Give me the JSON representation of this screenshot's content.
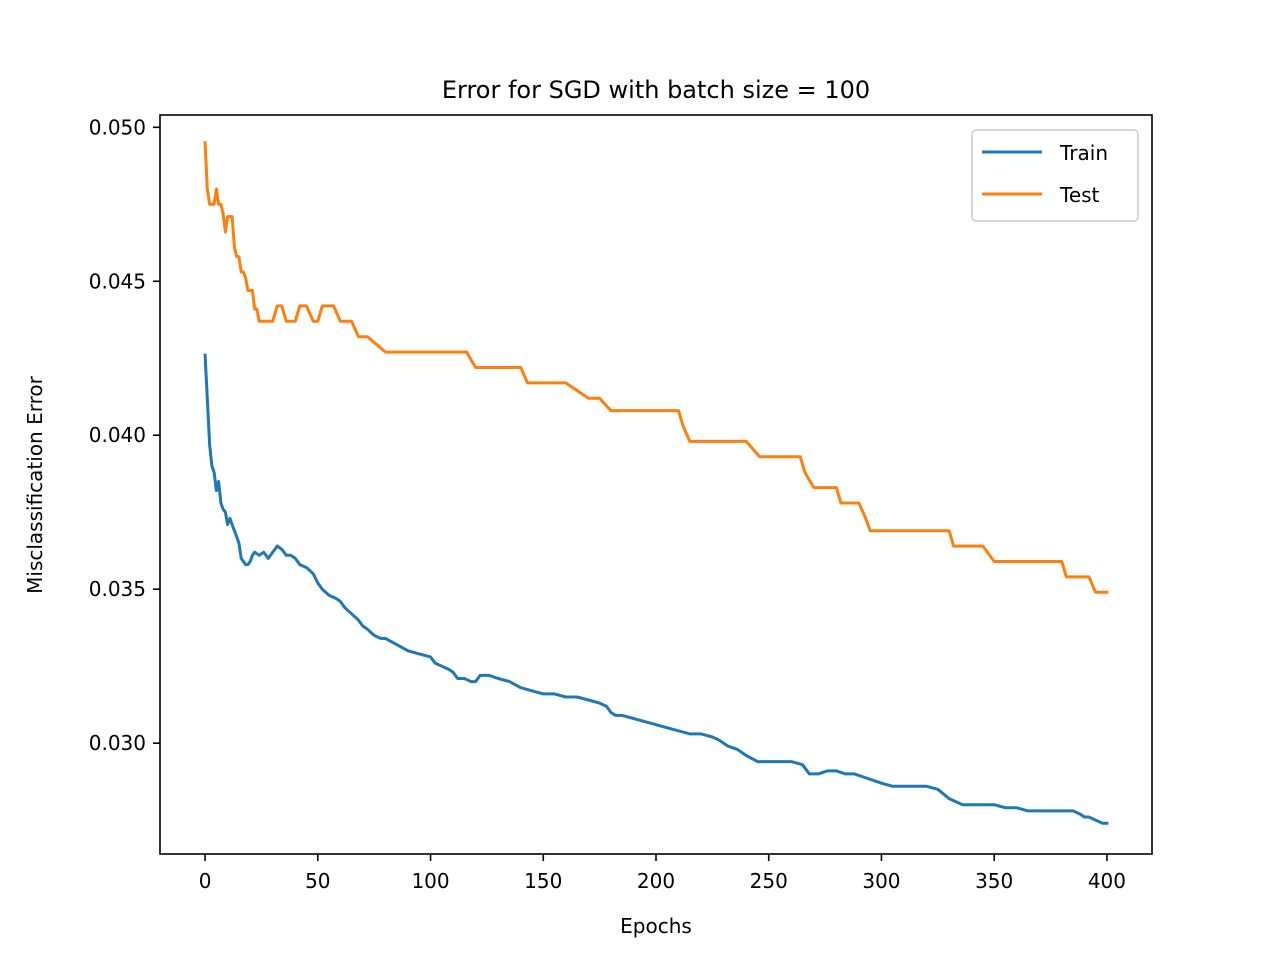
{
  "chart_data": {
    "type": "line",
    "title": "Error for SGD with batch size = 100",
    "xlabel": "Epochs",
    "ylabel": "Misclassification Error",
    "xlim": [
      -20,
      420
    ],
    "ylim": [
      0.0264,
      0.0504
    ],
    "xticks": [
      0,
      50,
      100,
      150,
      200,
      250,
      300,
      350,
      400
    ],
    "xtick_labels": [
      "0",
      "50",
      "100",
      "150",
      "200",
      "250",
      "300",
      "350",
      "400"
    ],
    "yticks": [
      0.03,
      0.035,
      0.04,
      0.045,
      0.05
    ],
    "ytick_labels": [
      "0.030",
      "0.035",
      "0.040",
      "0.045",
      "0.050"
    ],
    "grid": false,
    "legend": "top-right",
    "series": [
      {
        "name": "Train",
        "color": "#1f77b4",
        "x": [
          0,
          1,
          2,
          3,
          4,
          5,
          6,
          7,
          8,
          9,
          10,
          11,
          12,
          13,
          14,
          15,
          16,
          17,
          18,
          19,
          20,
          21,
          22,
          24,
          26,
          28,
          30,
          32,
          34,
          36,
          38,
          40,
          42,
          45,
          48,
          50,
          52,
          55,
          58,
          60,
          62,
          65,
          68,
          70,
          72,
          75,
          78,
          80,
          85,
          90,
          95,
          100,
          102,
          105,
          108,
          110,
          112,
          115,
          118,
          120,
          122,
          126,
          130,
          135,
          140,
          145,
          150,
          155,
          160,
          165,
          170,
          175,
          178,
          180,
          182,
          185,
          190,
          195,
          200,
          205,
          210,
          215,
          220,
          225,
          228,
          232,
          236,
          240,
          245,
          250,
          255,
          260,
          265,
          268,
          272,
          276,
          280,
          284,
          288,
          292,
          296,
          300,
          305,
          310,
          315,
          320,
          325,
          330,
          333,
          336,
          340,
          345,
          350,
          355,
          360,
          365,
          370,
          375,
          380,
          385,
          388,
          390,
          392,
          395,
          398,
          400
        ],
        "y": [
          0.0426,
          0.0412,
          0.0397,
          0.039,
          0.0388,
          0.0382,
          0.0385,
          0.0378,
          0.0376,
          0.0375,
          0.0371,
          0.0373,
          0.0371,
          0.0369,
          0.0367,
          0.0365,
          0.036,
          0.0359,
          0.0358,
          0.0358,
          0.0359,
          0.0361,
          0.0362,
          0.0361,
          0.0362,
          0.036,
          0.0362,
          0.0364,
          0.0363,
          0.0361,
          0.0361,
          0.036,
          0.0358,
          0.0357,
          0.0355,
          0.0352,
          0.035,
          0.0348,
          0.0347,
          0.0346,
          0.0344,
          0.0342,
          0.034,
          0.0338,
          0.0337,
          0.0335,
          0.0334,
          0.0334,
          0.0332,
          0.033,
          0.0329,
          0.0328,
          0.0326,
          0.0325,
          0.0324,
          0.0323,
          0.0321,
          0.0321,
          0.032,
          0.032,
          0.0322,
          0.0322,
          0.0321,
          0.032,
          0.0318,
          0.0317,
          0.0316,
          0.0316,
          0.0315,
          0.0315,
          0.0314,
          0.0313,
          0.0312,
          0.031,
          0.0309,
          0.0309,
          0.0308,
          0.0307,
          0.0306,
          0.0305,
          0.0304,
          0.0303,
          0.0303,
          0.0302,
          0.0301,
          0.0299,
          0.0298,
          0.0296,
          0.0294,
          0.0294,
          0.0294,
          0.0294,
          0.0293,
          0.029,
          0.029,
          0.0291,
          0.0291,
          0.029,
          0.029,
          0.0289,
          0.0288,
          0.0287,
          0.0286,
          0.0286,
          0.0286,
          0.0286,
          0.0285,
          0.0282,
          0.0281,
          0.028,
          0.028,
          0.028,
          0.028,
          0.0279,
          0.0279,
          0.0278,
          0.0278,
          0.0278,
          0.0278,
          0.0278,
          0.0277,
          0.0276,
          0.0276,
          0.0275,
          0.0274,
          0.0274
        ]
      },
      {
        "name": "Test",
        "color": "#ff7f0e",
        "x": [
          0,
          1,
          2,
          3,
          4,
          5,
          6,
          7,
          8,
          9,
          10,
          11,
          12,
          13,
          14,
          15,
          16,
          17,
          18,
          19,
          20,
          21,
          22,
          23,
          24,
          26,
          28,
          30,
          32,
          34,
          36,
          38,
          40,
          42,
          45,
          48,
          50,
          52,
          55,
          57,
          60,
          62,
          65,
          68,
          70,
          72,
          80,
          90,
          100,
          110,
          116,
          120,
          130,
          140,
          143,
          150,
          160,
          170,
          175,
          180,
          182,
          190,
          200,
          210,
          212,
          215,
          220,
          230,
          240,
          246,
          250,
          260,
          264,
          266,
          270,
          280,
          282,
          290,
          293,
          295,
          300,
          310,
          320,
          330,
          332,
          340,
          345,
          350,
          360,
          370,
          380,
          382,
          390,
          392,
          395,
          400
        ],
        "y": [
          0.0495,
          0.048,
          0.0475,
          0.0475,
          0.0475,
          0.048,
          0.0475,
          0.0475,
          0.0472,
          0.0466,
          0.0471,
          0.0471,
          0.0471,
          0.0461,
          0.0458,
          0.0458,
          0.0453,
          0.0453,
          0.0451,
          0.0447,
          0.0447,
          0.0447,
          0.0441,
          0.0441,
          0.0437,
          0.0437,
          0.0437,
          0.0437,
          0.0442,
          0.0442,
          0.0437,
          0.0437,
          0.0437,
          0.0442,
          0.0442,
          0.0437,
          0.0437,
          0.0442,
          0.0442,
          0.0442,
          0.0437,
          0.0437,
          0.0437,
          0.0432,
          0.0432,
          0.0432,
          0.0427,
          0.0427,
          0.0427,
          0.0427,
          0.0427,
          0.0422,
          0.0422,
          0.0422,
          0.0417,
          0.0417,
          0.0417,
          0.0412,
          0.0412,
          0.0408,
          0.0408,
          0.0408,
          0.0408,
          0.0408,
          0.0403,
          0.0398,
          0.0398,
          0.0398,
          0.0398,
          0.0393,
          0.0393,
          0.0393,
          0.0393,
          0.0388,
          0.0383,
          0.0383,
          0.0378,
          0.0378,
          0.0373,
          0.0369,
          0.0369,
          0.0369,
          0.0369,
          0.0369,
          0.0364,
          0.0364,
          0.0364,
          0.0359,
          0.0359,
          0.0359,
          0.0359,
          0.0354,
          0.0354,
          0.0354,
          0.0349,
          0.0349
        ]
      }
    ]
  }
}
